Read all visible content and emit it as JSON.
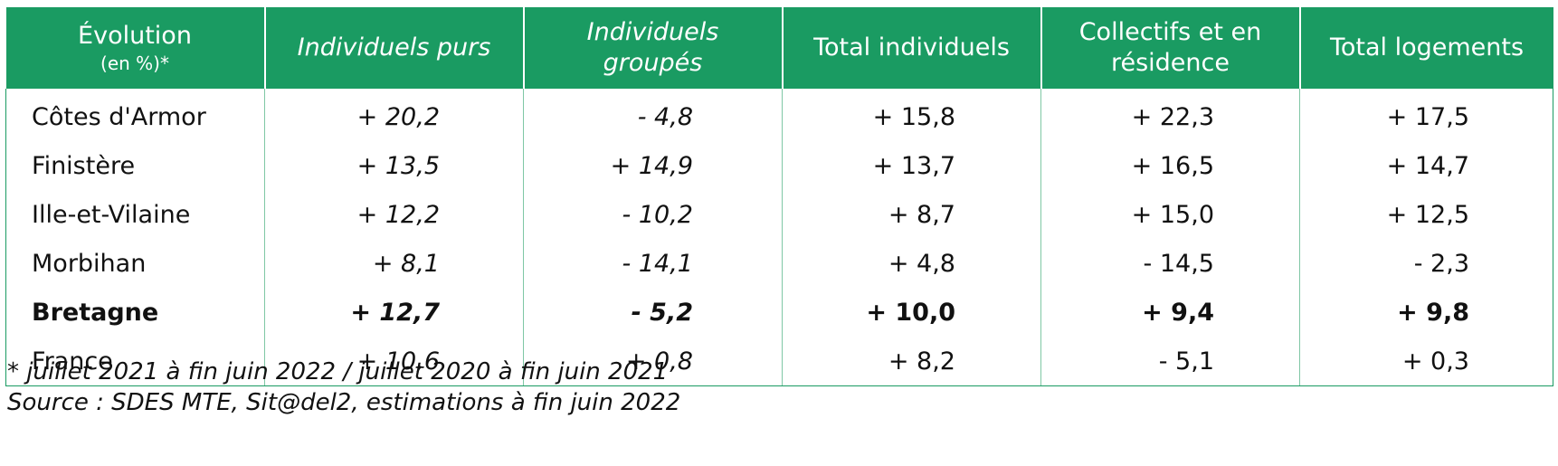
{
  "table": {
    "headers": {
      "h0_line1": "Évolution",
      "h0_line2": "(en %)*",
      "h1": "Individuels purs",
      "h2_line1": "Individuels",
      "h2_line2": "groupés",
      "h3": "Total individuels",
      "h4_line1": "Collectifs et en",
      "h4_line2": "résidence",
      "h5": "Total logements"
    },
    "rows": [
      {
        "label": "Côtes d'Armor",
        "purs": "+ 20,2",
        "groupes": "- 4,8",
        "total_ind": "+ 15,8",
        "collectifs": "+ 22,3",
        "total_log": "+ 17,5"
      },
      {
        "label": "Finistère",
        "purs": "+ 13,5",
        "groupes": "+ 14,9",
        "total_ind": "+ 13,7",
        "collectifs": "+ 16,5",
        "total_log": "+ 14,7"
      },
      {
        "label": "Ille-et-Vilaine",
        "purs": "+ 12,2",
        "groupes": "- 10,2",
        "total_ind": "+ 8,7",
        "collectifs": "+ 15,0",
        "total_log": "+ 12,5"
      },
      {
        "label": "Morbihan",
        "purs": "+ 8,1",
        "groupes": "- 14,1",
        "total_ind": "+ 4,8",
        "collectifs": "- 14,5",
        "total_log": "- 2,3"
      },
      {
        "label": "Bretagne",
        "purs": "+ 12,7",
        "groupes": "- 5,2",
        "total_ind": "+ 10,0",
        "collectifs": "+ 9,4",
        "total_log": "+ 9,8"
      },
      {
        "label": "France",
        "purs": "+ 10,6",
        "groupes": "+ 0,8",
        "total_ind": "+ 8,2",
        "collectifs": "- 5,1",
        "total_log": "+ 0,3"
      }
    ]
  },
  "notes": {
    "period": "* juillet 2021 à fin juin 2022 / juillet 2020 à fin juin 2021",
    "source": "Source : SDES MTE, Sit@del2, estimations à fin juin 2022"
  },
  "colors": {
    "header_bg": "#1a9b62",
    "header_text": "#ffffff",
    "grid_line": "#7fc7a5"
  }
}
